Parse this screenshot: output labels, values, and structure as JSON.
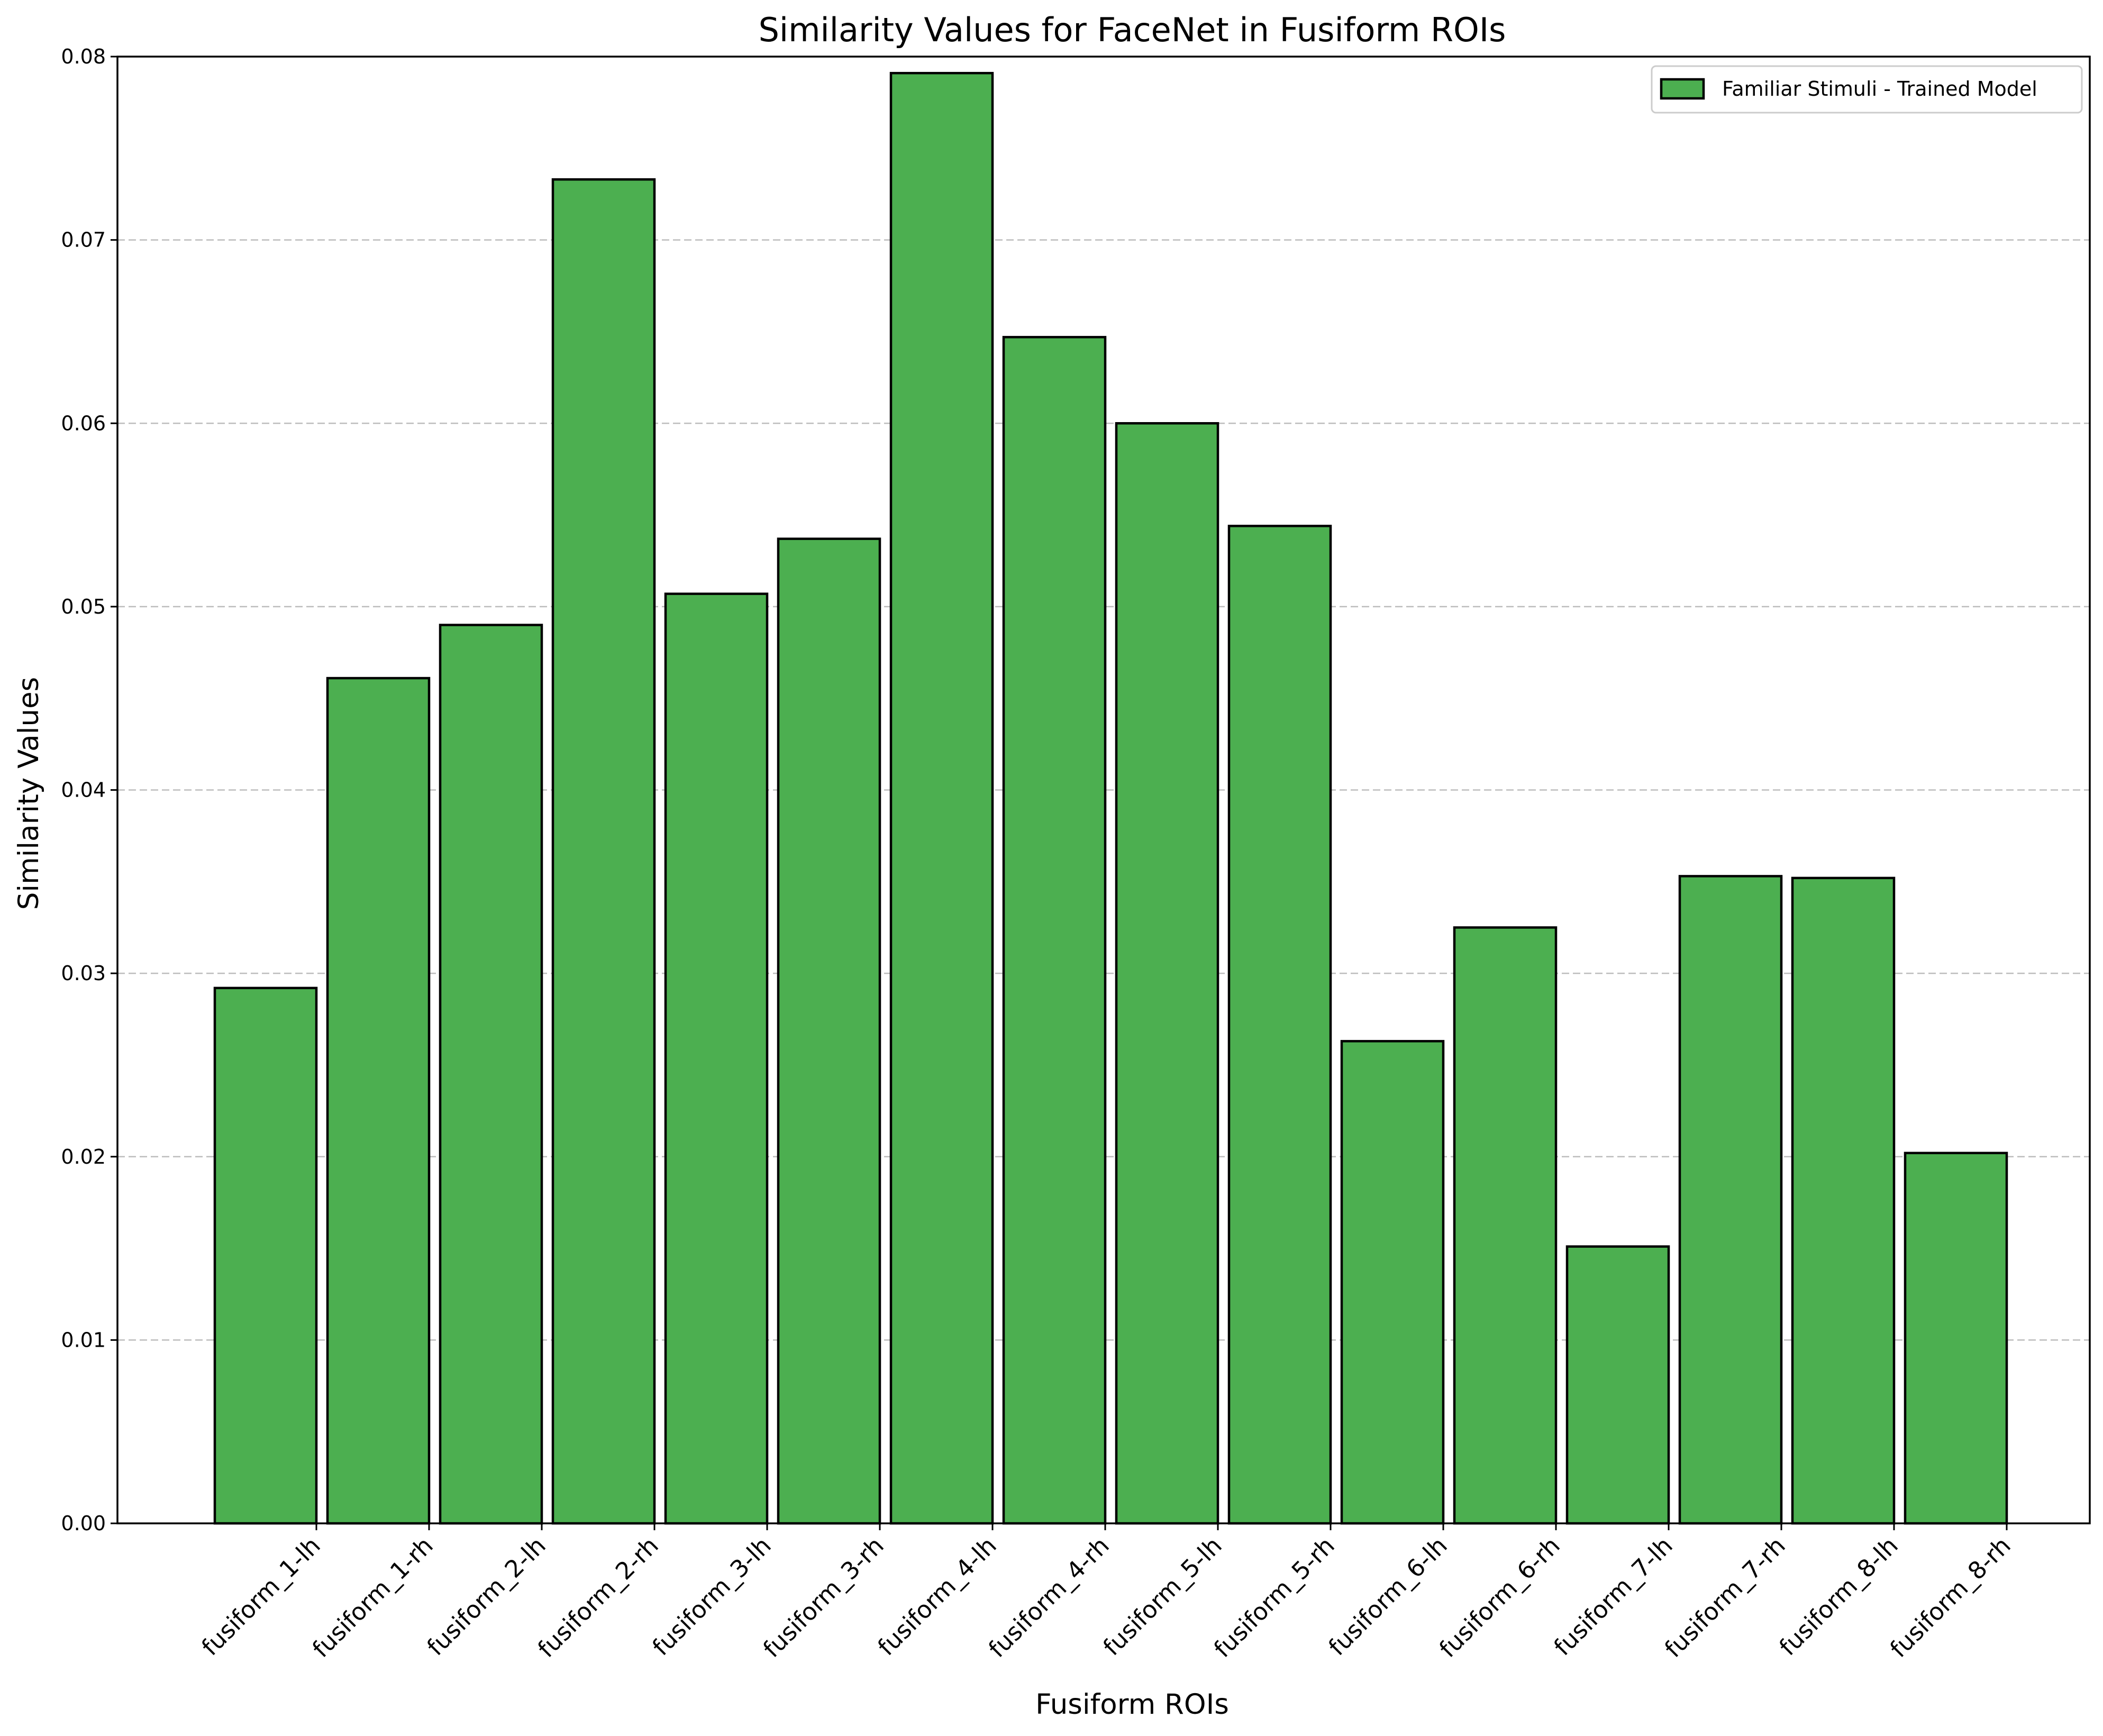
{
  "chart_data": {
    "type": "bar",
    "title": "Similarity Values for FaceNet in Fusiform ROIs",
    "xlabel": "Fusiform ROIs",
    "ylabel": "Similarity Values",
    "categories": [
      "fusiform_1-lh",
      "fusiform_1-rh",
      "fusiform_2-lh",
      "fusiform_2-rh",
      "fusiform_3-lh",
      "fusiform_3-rh",
      "fusiform_4-lh",
      "fusiform_4-rh",
      "fusiform_5-lh",
      "fusiform_5-rh",
      "fusiform_6-lh",
      "fusiform_6-rh",
      "fusiform_7-lh",
      "fusiform_7-rh",
      "fusiform_8-lh",
      "fusiform_8-rh"
    ],
    "series": [
      {
        "name": "Familiar Stimuli - Trained Model",
        "color": "#4caf50",
        "values": [
          0.0292,
          0.0461,
          0.049,
          0.0733,
          0.0507,
          0.0537,
          0.0791,
          0.0647,
          0.06,
          0.0544,
          0.0263,
          0.0325,
          0.0151,
          0.0353,
          0.0352,
          0.0202
        ]
      }
    ],
    "ylim": [
      0,
      0.08
    ],
    "yticks": [
      "0.00",
      "0.01",
      "0.02",
      "0.03",
      "0.04",
      "0.05",
      "0.06",
      "0.07",
      "0.08"
    ],
    "grid": "y-dashed",
    "legend_position": "top-right"
  }
}
